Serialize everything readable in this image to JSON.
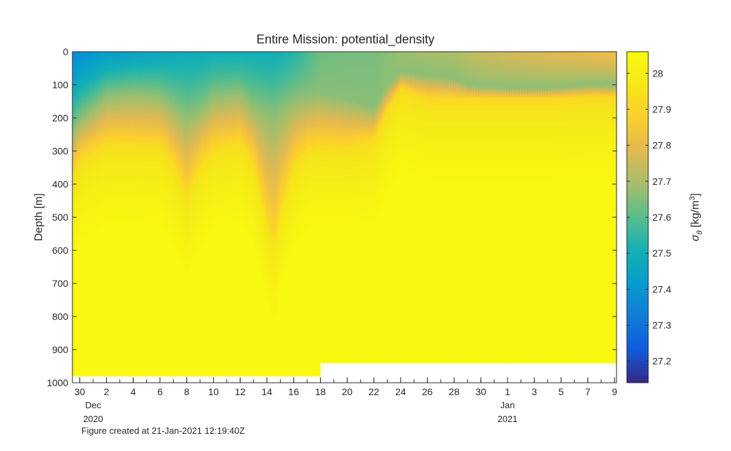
{
  "figure": {
    "footer": "Figure created at 21-Jan-2021 12:19:40Z"
  },
  "chart_data": {
    "type": "heatmap",
    "title": "Entire Mission: potential_density",
    "xlabel": "",
    "ylabel": "Depth [m]",
    "colorbar_label": "σθ [kg/m3]",
    "colorbar_label_parts": {
      "symbol": "σ",
      "subscript": "θ",
      "units": " [kg/m",
      "superscript": "3",
      "close": "]"
    },
    "ylim": [
      0,
      1000
    ],
    "y_reversed": true,
    "y_ticks": [
      0,
      100,
      200,
      300,
      400,
      500,
      600,
      700,
      800,
      900,
      1000
    ],
    "x_range_days": [
      "2020-11-29",
      "2021-01-09"
    ],
    "x_ticks": [
      {
        "date": "2020-11-30",
        "label": "30"
      },
      {
        "date": "2020-12-02",
        "label": "2"
      },
      {
        "date": "2020-12-04",
        "label": "4"
      },
      {
        "date": "2020-12-06",
        "label": "6"
      },
      {
        "date": "2020-12-08",
        "label": "8"
      },
      {
        "date": "2020-12-10",
        "label": "10"
      },
      {
        "date": "2020-12-12",
        "label": "12"
      },
      {
        "date": "2020-12-14",
        "label": "14"
      },
      {
        "date": "2020-12-16",
        "label": "16"
      },
      {
        "date": "2020-12-18",
        "label": "18"
      },
      {
        "date": "2020-12-20",
        "label": "20"
      },
      {
        "date": "2020-12-22",
        "label": "22"
      },
      {
        "date": "2020-12-24",
        "label": "24"
      },
      {
        "date": "2020-12-26",
        "label": "26"
      },
      {
        "date": "2020-12-28",
        "label": "28"
      },
      {
        "date": "2020-12-30",
        "label": "30"
      },
      {
        "date": "2021-01-01",
        "label": "1"
      },
      {
        "date": "2021-01-03",
        "label": "3"
      },
      {
        "date": "2021-01-05",
        "label": "5"
      },
      {
        "date": "2021-01-07",
        "label": "7"
      },
      {
        "date": "2021-01-09",
        "label": "9"
      }
    ],
    "month_labels": [
      {
        "date": "2020-12-01",
        "month": "Dec",
        "year": "2020"
      },
      {
        "date": "2021-01-01",
        "month": "Jan",
        "year": "2021"
      }
    ],
    "colorbar": {
      "range": [
        27.14,
        28.06
      ],
      "ticks": [
        27.2,
        27.3,
        27.4,
        27.5,
        27.6,
        27.7,
        27.8,
        27.9,
        28
      ],
      "tick_labels": [
        "27.2",
        "27.3",
        "27.4",
        "27.5",
        "27.6",
        "27.7",
        "27.8",
        "27.9",
        "28"
      ],
      "colormap": "parula"
    },
    "dive_max_depth": [
      {
        "date": "2020-11-29",
        "depth": 980
      },
      {
        "date": "2020-12-18",
        "depth": 980
      },
      {
        "date": "2020-12-19",
        "depth": 940
      },
      {
        "date": "2021-01-09",
        "depth": 940
      }
    ],
    "profiles": [
      {
        "date": "2020-11-29",
        "surface": 27.36,
        "d30": 270,
        "d27_9": 400
      },
      {
        "date": "2020-11-30",
        "surface": 27.38,
        "d30": 200,
        "d27_9": 320
      },
      {
        "date": "2020-12-02",
        "surface": 27.43,
        "d30": 130,
        "d27_9": 270
      },
      {
        "date": "2020-12-04",
        "surface": 27.45,
        "d30": 120,
        "d27_9": 270
      },
      {
        "date": "2020-12-06",
        "surface": 27.47,
        "d30": 130,
        "d27_9": 275
      },
      {
        "date": "2020-12-07",
        "surface": 27.48,
        "d30": 160,
        "d27_9": 330
      },
      {
        "date": "2020-12-08",
        "surface": 27.49,
        "d30": 190,
        "d27_9": 420
      },
      {
        "date": "2020-12-09",
        "surface": 27.49,
        "d30": 170,
        "d27_9": 330
      },
      {
        "date": "2020-12-10",
        "surface": 27.5,
        "d30": 130,
        "d27_9": 285
      },
      {
        "date": "2020-12-12",
        "surface": 27.5,
        "d30": 120,
        "d27_9": 265
      },
      {
        "date": "2020-12-13",
        "surface": 27.5,
        "d30": 160,
        "d27_9": 330
      },
      {
        "date": "2020-12-14",
        "surface": 27.5,
        "d30": 180,
        "d27_9": 500
      },
      {
        "date": "2020-12-14.5",
        "surface": 27.5,
        "d30": 190,
        "d27_9": 560
      },
      {
        "date": "2020-12-15",
        "surface": 27.51,
        "d30": 170,
        "d27_9": 460
      },
      {
        "date": "2020-12-16",
        "surface": 27.53,
        "d30": 140,
        "d27_9": 330
      },
      {
        "date": "2020-12-17",
        "surface": 27.58,
        "d30": 130,
        "d27_9": 285
      },
      {
        "date": "2020-12-18",
        "surface": 27.63,
        "d30": 125,
        "d27_9": 275
      },
      {
        "date": "2020-12-20",
        "surface": 27.64,
        "d30": 140,
        "d27_9": 280
      },
      {
        "date": "2020-12-22",
        "surface": 27.64,
        "d30": 170,
        "d27_9": 260
      },
      {
        "date": "2020-12-23",
        "surface": 27.66,
        "d30": 100,
        "d27_9": 170
      },
      {
        "date": "2020-12-24",
        "surface": 27.68,
        "d30": 60,
        "d27_9": 110
      },
      {
        "date": "2020-12-26",
        "surface": 27.69,
        "d30": 70,
        "d27_9": 140
      },
      {
        "date": "2020-12-28",
        "surface": 27.7,
        "d30": 80,
        "d27_9": 140
      },
      {
        "date": "2020-12-29",
        "surface": 27.73,
        "d30": 100,
        "d27_9": 140
      },
      {
        "date": "2021-01-01",
        "surface": 27.76,
        "d30": 110,
        "d27_9": 140
      },
      {
        "date": "2021-01-04",
        "surface": 27.78,
        "d30": 110,
        "d27_9": 140
      },
      {
        "date": "2021-01-07",
        "surface": 27.8,
        "d30": 100,
        "d27_9": 135
      },
      {
        "date": "2021-01-09",
        "surface": 27.82,
        "d30": 100,
        "d27_9": 135
      }
    ]
  }
}
